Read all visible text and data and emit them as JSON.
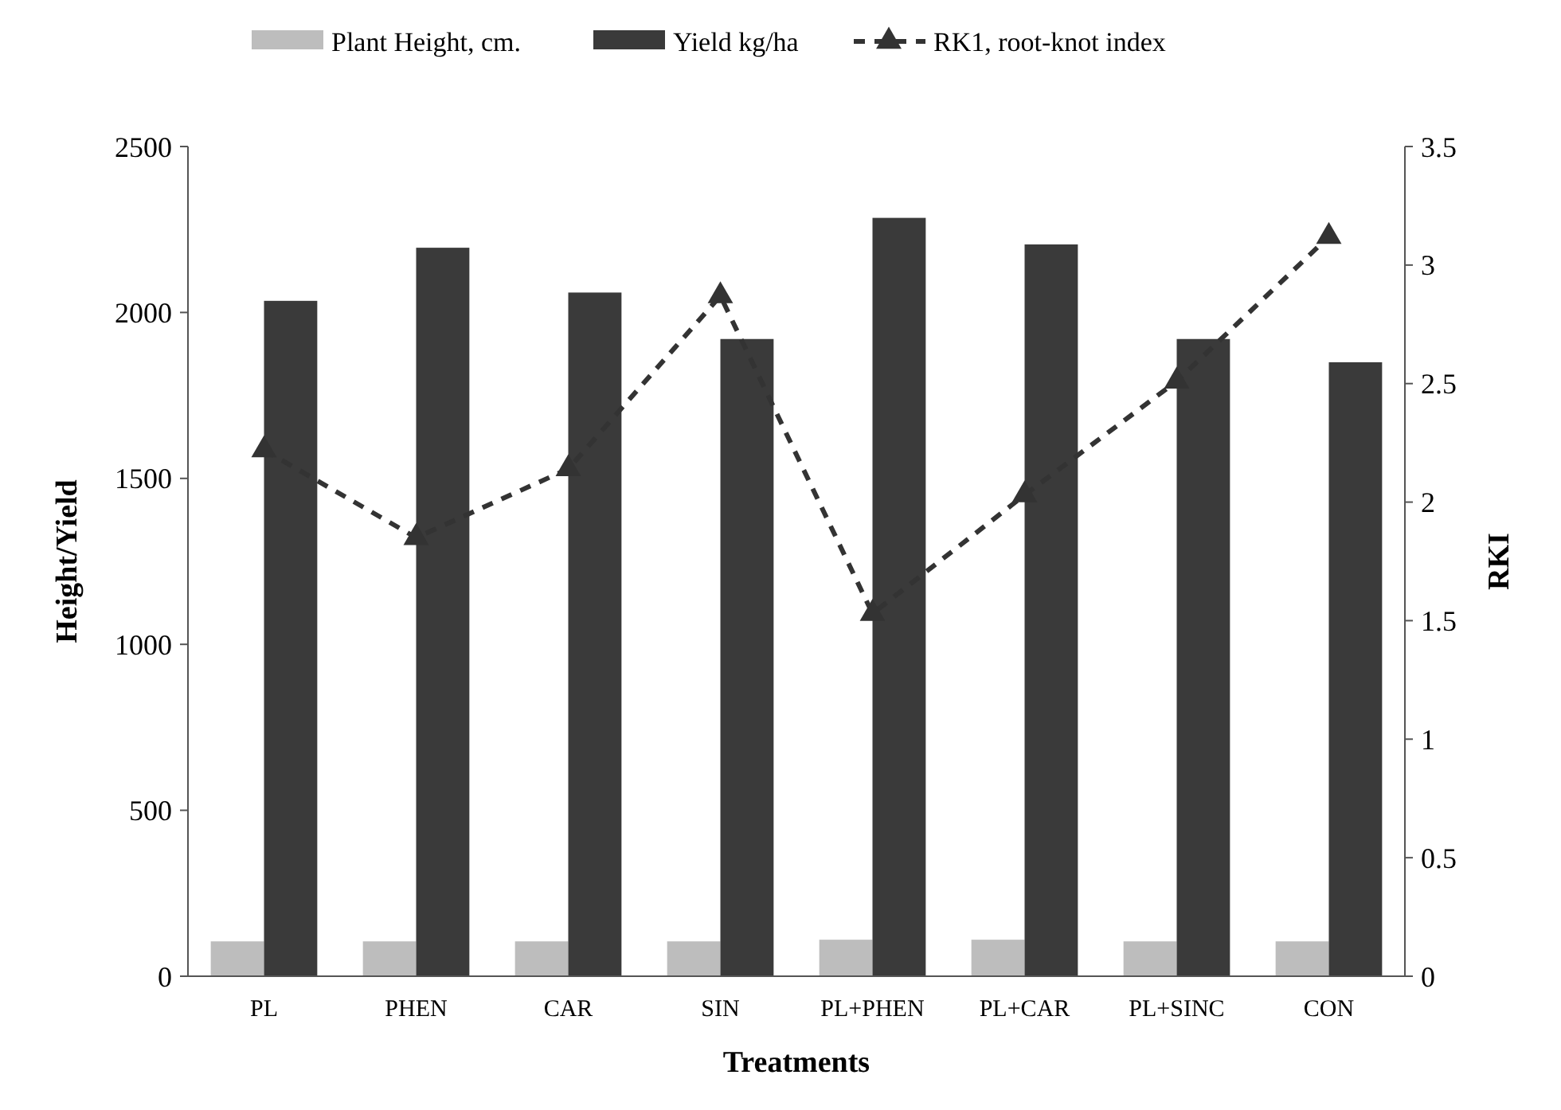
{
  "chart_data": {
    "type": "bar",
    "xlabel": "Treatments",
    "ylabel": "Height/Yield",
    "y2label": "RKI",
    "categories": [
      "PL",
      "PHEN",
      "CAR",
      "SIN",
      "PL+PHEN",
      "PL+CAR",
      "PL+SINC",
      "CON"
    ],
    "series": [
      {
        "name": "Plant Height, cm.",
        "color": "#bdbdbd",
        "values": [
          105,
          105,
          105,
          105,
          110,
          110,
          105,
          105
        ]
      },
      {
        "name": "Yield kg/ha",
        "color": "#3a3a3a",
        "values": [
          2035,
          2195,
          2060,
          1920,
          2285,
          2205,
          1920,
          1850
        ]
      },
      {
        "name": "RK1, root-knot index",
        "type": "line",
        "axis": "y2",
        "color": "#333333",
        "marker": "triangle",
        "line_style": "dashed",
        "values": [
          2.22,
          1.85,
          2.14,
          2.87,
          1.53,
          2.03,
          2.51,
          3.12
        ]
      }
    ],
    "ylim": [
      0,
      2500
    ],
    "yticks": [
      0,
      500,
      1000,
      1500,
      2000,
      2500
    ],
    "y2lim": [
      0,
      3.5
    ],
    "y2ticks": [
      0,
      0.5,
      1,
      1.5,
      2,
      2.5,
      3,
      3.5
    ],
    "grid": false,
    "legend": "top"
  }
}
